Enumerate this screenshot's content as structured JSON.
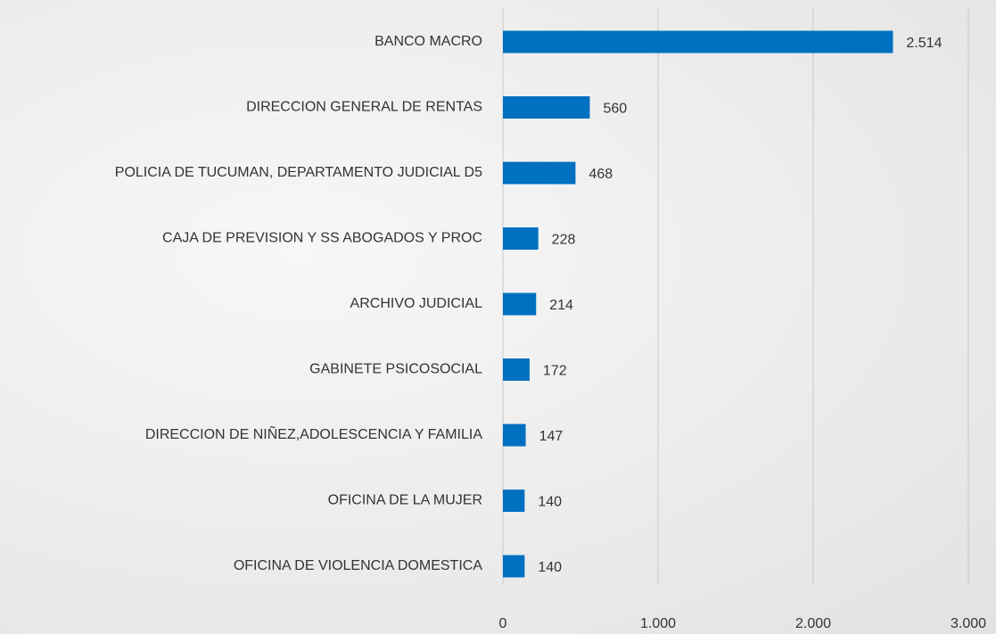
{
  "chart_data": {
    "type": "bar",
    "orientation": "horizontal",
    "categories": [
      "BANCO MACRO",
      "DIRECCION GENERAL DE RENTAS",
      "POLICIA DE TUCUMAN, DEPARTAMENTO JUDICIAL D5",
      "CAJA DE PREVISION Y SS ABOGADOS Y PROC",
      "ARCHIVO JUDICIAL",
      "GABINETE PSICOSOCIAL",
      "DIRECCION DE NIÑEZ,ADOLESCENCIA Y FAMILIA",
      "OFICINA DE LA MUJER",
      "OFICINA DE VIOLENCIA DOMESTICA"
    ],
    "values": [
      2514,
      560,
      468,
      228,
      214,
      172,
      147,
      140,
      140
    ],
    "value_labels": [
      "2.514",
      "560",
      "468",
      "228",
      "214",
      "172",
      "147",
      "140",
      "140"
    ],
    "color": "#0070c0",
    "xlim": [
      0,
      3000
    ],
    "xticks": [
      0,
      {
        "value": 1000,
        "label": "1.000"
      },
      {
        "value": 2000,
        "label": "2.000"
      },
      {
        "value": 3000,
        "label": "3.000"
      }
    ],
    "grid": true
  }
}
